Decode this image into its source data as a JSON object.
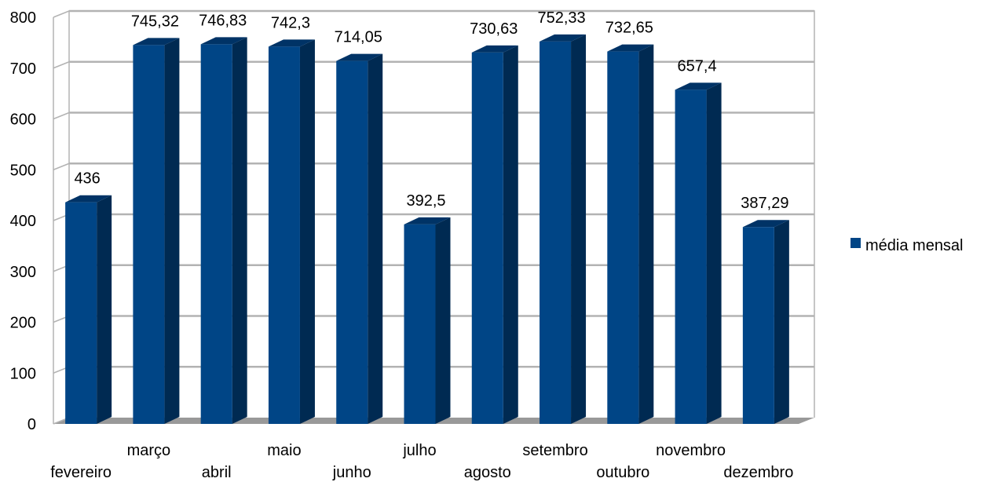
{
  "chart_data": {
    "type": "bar",
    "categories": [
      "fevereiro",
      "março",
      "abril",
      "maio",
      "junho",
      "julho",
      "agosto",
      "setembro",
      "outubro",
      "novembro",
      "dezembro"
    ],
    "series": [
      {
        "name": "média mensal",
        "values": [
          436,
          745.32,
          746.83,
          742.3,
          714.05,
          392.5,
          730.63,
          752.33,
          732.65,
          657.4,
          387.29
        ],
        "labels": [
          "436",
          "745,32",
          "746,83",
          "742,3",
          "714,05",
          "392,5",
          "730,63",
          "752,33",
          "732,65",
          "657,4",
          "387,29"
        ],
        "color": "#004586"
      }
    ],
    "yticks": [
      "0",
      "100",
      "200",
      "300",
      "400",
      "500",
      "600",
      "700",
      "800"
    ],
    "ylim": [
      0,
      800
    ],
    "grid": true,
    "legend_position": "right",
    "three_d": true
  }
}
